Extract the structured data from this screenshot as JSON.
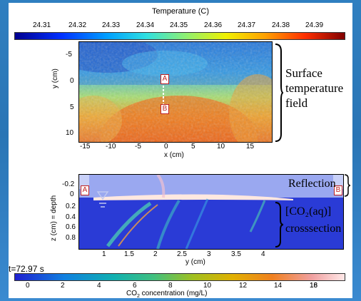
{
  "top_colorbar": {
    "title": "Temperature (C)",
    "ticks": [
      "24.31",
      "24.32",
      "24.33",
      "24.34",
      "24.35",
      "24.36",
      "24.37",
      "24.38",
      "24.39"
    ]
  },
  "surface_panel": {
    "y_label": "y (cm)",
    "y_ticks": [
      "-5",
      "0",
      "5",
      "10"
    ],
    "x_label": "x (cm)",
    "x_ticks": [
      "-15",
      "-10",
      "-5",
      "0",
      "5",
      "10",
      "15"
    ],
    "marker_a": "A",
    "marker_b": "B",
    "annotation": [
      "Surface",
      "temperature",
      "field"
    ]
  },
  "cross_panel": {
    "y_label": "z (cm) = depth",
    "y_ticks": [
      "-0.2",
      "0",
      "0.2",
      "0.4",
      "0.6",
      "0.8"
    ],
    "x_label": "y (cm)",
    "x_ticks": [
      "1",
      "1.5",
      "2",
      "2.5",
      "3",
      "3.5",
      "4"
    ],
    "marker_a": "A",
    "marker_b": "B",
    "reflection_label": "Reflection",
    "cross_label_1": "[CO₂(aq)]",
    "cross_label_2": "crosssection"
  },
  "time_label": "t=72.97 s",
  "bottom_colorbar": {
    "ticks": [
      "0",
      "2",
      "4",
      "6",
      "8",
      "10",
      "12",
      "14",
      "16",
      "18"
    ],
    "title_prefix": "CO",
    "title_sub": "2",
    "title_suffix": " concentration (mg/L)"
  },
  "colors": {
    "background": "#2f7fc0",
    "temp_low": "#1a1aa0",
    "temp_high": "#a01010",
    "co2_low": "#2a3bd6",
    "co2_high": "#ffe0e0",
    "marker": "#c02020"
  }
}
